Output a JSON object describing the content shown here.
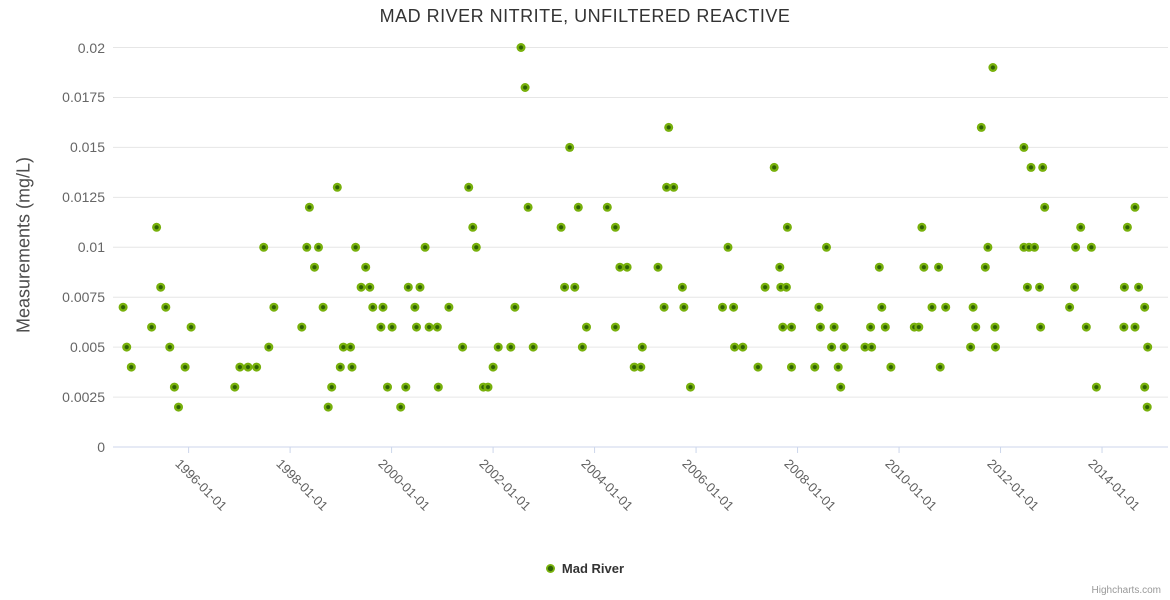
{
  "title": "MAD RIVER NITRITE, UNFILTERED REACTIVE",
  "legend": {
    "label": "Mad River"
  },
  "credit": "Highcharts.com",
  "colors": {
    "title": "#333333",
    "tick_label": "#666666",
    "grid": "#e6e6e6",
    "axis_line": "#ccd6eb",
    "marker_outer": "#7bb40e",
    "marker_inner": "#2f6105"
  },
  "chart_data": {
    "type": "scatter",
    "title": "MAD RIVER NITRITE, UNFILTERED REACTIVE",
    "xlabel": "",
    "ylabel": "Measurements (mg/L)",
    "grid": "horizontal",
    "legend_position": "bottom-center",
    "xlim_years": [
      1994.51,
      2015.3
    ],
    "ylim": [
      0,
      0.02
    ],
    "x_tick_years": [
      1996,
      1998,
      2000,
      2002,
      2004,
      2006,
      2008,
      2010,
      2012,
      2014
    ],
    "x_ticks": [
      "1996-01-01",
      "1998-01-01",
      "2000-01-01",
      "2002-01-01",
      "2004-01-01",
      "2006-01-01",
      "2008-01-01",
      "2010-01-01",
      "2012-01-01",
      "2014-01-01"
    ],
    "y_ticks": [
      0,
      0.0025,
      0.005,
      0.0075,
      0.01,
      0.0125,
      0.015,
      0.0175,
      0.02
    ],
    "y_tick_labels": [
      "0",
      "0.0025",
      "0.005",
      "0.0075",
      "0.01",
      "0.0125",
      "0.015",
      "0.0175",
      "0.02"
    ],
    "series": [
      {
        "name": "Mad River",
        "points": [
          [
            1994.71,
            0.007
          ],
          [
            1994.78,
            0.005
          ],
          [
            1994.87,
            0.004
          ],
          [
            1995.27,
            0.006
          ],
          [
            1995.37,
            0.011
          ],
          [
            1995.45,
            0.008
          ],
          [
            1995.55,
            0.007
          ],
          [
            1995.63,
            0.005
          ],
          [
            1995.72,
            0.003
          ],
          [
            1995.8,
            0.002
          ],
          [
            1995.93,
            0.004
          ],
          [
            1996.05,
            0.006
          ],
          [
            1996.91,
            0.003
          ],
          [
            1997.01,
            0.004
          ],
          [
            1997.17,
            0.004
          ],
          [
            1997.34,
            0.004
          ],
          [
            1997.48,
            0.01
          ],
          [
            1997.58,
            0.005
          ],
          [
            1997.68,
            0.007
          ],
          [
            1998.23,
            0.006
          ],
          [
            1998.33,
            0.01
          ],
          [
            1998.38,
            0.012
          ],
          [
            1998.48,
            0.009
          ],
          [
            1998.56,
            0.01
          ],
          [
            1998.65,
            0.007
          ],
          [
            1998.75,
            0.002
          ],
          [
            1998.82,
            0.003
          ],
          [
            1998.93,
            0.013
          ],
          [
            1998.99,
            0.004
          ],
          [
            1999.05,
            0.005
          ],
          [
            1999.19,
            0.005
          ],
          [
            1999.22,
            0.004
          ],
          [
            1999.29,
            0.01
          ],
          [
            1999.4,
            0.008
          ],
          [
            1999.49,
            0.009
          ],
          [
            1999.57,
            0.008
          ],
          [
            1999.63,
            0.007
          ],
          [
            1999.79,
            0.006
          ],
          [
            1999.83,
            0.007
          ],
          [
            1999.92,
            0.003
          ],
          [
            2000.01,
            0.006
          ],
          [
            2000.18,
            0.002
          ],
          [
            2000.28,
            0.003
          ],
          [
            2000.33,
            0.008
          ],
          [
            2000.46,
            0.007
          ],
          [
            2000.49,
            0.006
          ],
          [
            2000.56,
            0.008
          ],
          [
            2000.66,
            0.01
          ],
          [
            2000.74,
            0.006
          ],
          [
            2000.9,
            0.006
          ],
          [
            2000.92,
            0.003
          ],
          [
            2001.13,
            0.007
          ],
          [
            2001.4,
            0.005
          ],
          [
            2001.52,
            0.013
          ],
          [
            2001.6,
            0.011
          ],
          [
            2001.67,
            0.01
          ],
          [
            2001.81,
            0.003
          ],
          [
            2001.9,
            0.003
          ],
          [
            2002.0,
            0.004
          ],
          [
            2002.1,
            0.005
          ],
          [
            2002.35,
            0.005
          ],
          [
            2002.43,
            0.007
          ],
          [
            2002.55,
            0.02
          ],
          [
            2002.63,
            0.018
          ],
          [
            2002.69,
            0.012
          ],
          [
            2002.79,
            0.005
          ],
          [
            2003.34,
            0.011
          ],
          [
            2003.41,
            0.008
          ],
          [
            2003.51,
            0.015
          ],
          [
            2003.61,
            0.008
          ],
          [
            2003.68,
            0.012
          ],
          [
            2003.76,
            0.005
          ],
          [
            2003.84,
            0.006
          ],
          [
            2004.25,
            0.012
          ],
          [
            2004.41,
            0.011
          ],
          [
            2004.41,
            0.006
          ],
          [
            2004.5,
            0.009
          ],
          [
            2004.64,
            0.009
          ],
          [
            2004.78,
            0.004
          ],
          [
            2004.91,
            0.004
          ],
          [
            2004.94,
            0.005
          ],
          [
            2005.25,
            0.009
          ],
          [
            2005.37,
            0.007
          ],
          [
            2005.42,
            0.013
          ],
          [
            2005.46,
            0.016
          ],
          [
            2005.56,
            0.013
          ],
          [
            2005.73,
            0.008
          ],
          [
            2005.76,
            0.007
          ],
          [
            2005.89,
            0.003
          ],
          [
            2006.52,
            0.007
          ],
          [
            2006.63,
            0.01
          ],
          [
            2006.74,
            0.007
          ],
          [
            2006.76,
            0.005
          ],
          [
            2006.92,
            0.005
          ],
          [
            2007.22,
            0.004
          ],
          [
            2007.36,
            0.008
          ],
          [
            2007.54,
            0.014
          ],
          [
            2007.65,
            0.009
          ],
          [
            2007.67,
            0.008
          ],
          [
            2007.71,
            0.006
          ],
          [
            2007.78,
            0.008
          ],
          [
            2007.8,
            0.011
          ],
          [
            2007.88,
            0.006
          ],
          [
            2007.88,
            0.004
          ],
          [
            2008.34,
            0.004
          ],
          [
            2008.42,
            0.007
          ],
          [
            2008.45,
            0.006
          ],
          [
            2008.57,
            0.01
          ],
          [
            2008.67,
            0.005
          ],
          [
            2008.72,
            0.006
          ],
          [
            2008.8,
            0.004
          ],
          [
            2008.85,
            0.003
          ],
          [
            2008.92,
            0.005
          ],
          [
            2009.33,
            0.005
          ],
          [
            2009.44,
            0.006
          ],
          [
            2009.46,
            0.005
          ],
          [
            2009.61,
            0.009
          ],
          [
            2009.66,
            0.007
          ],
          [
            2009.73,
            0.006
          ],
          [
            2009.84,
            0.004
          ],
          [
            2010.3,
            0.006
          ],
          [
            2010.39,
            0.006
          ],
          [
            2010.45,
            0.011
          ],
          [
            2010.49,
            0.009
          ],
          [
            2010.65,
            0.007
          ],
          [
            2010.78,
            0.009
          ],
          [
            2010.81,
            0.004
          ],
          [
            2010.92,
            0.007
          ],
          [
            2011.41,
            0.005
          ],
          [
            2011.46,
            0.007
          ],
          [
            2011.51,
            0.006
          ],
          [
            2011.62,
            0.016
          ],
          [
            2011.7,
            0.009
          ],
          [
            2011.75,
            0.01
          ],
          [
            2011.85,
            0.019
          ],
          [
            2011.89,
            0.006
          ],
          [
            2011.9,
            0.005
          ],
          [
            2012.46,
            0.015
          ],
          [
            2012.46,
            0.01
          ],
          [
            2012.53,
            0.008
          ],
          [
            2012.56,
            0.01
          ],
          [
            2012.6,
            0.014
          ],
          [
            2012.67,
            0.01
          ],
          [
            2012.77,
            0.008
          ],
          [
            2012.79,
            0.006
          ],
          [
            2012.83,
            0.014
          ],
          [
            2012.87,
            0.012
          ],
          [
            2013.36,
            0.007
          ],
          [
            2013.46,
            0.008
          ],
          [
            2013.48,
            0.01
          ],
          [
            2013.58,
            0.011
          ],
          [
            2013.69,
            0.006
          ],
          [
            2013.79,
            0.01
          ],
          [
            2013.89,
            0.003
          ],
          [
            2014.43,
            0.006
          ],
          [
            2014.44,
            0.008
          ],
          [
            2014.5,
            0.011
          ],
          [
            2014.65,
            0.012
          ],
          [
            2014.65,
            0.006
          ],
          [
            2014.72,
            0.008
          ],
          [
            2014.84,
            0.007
          ],
          [
            2014.84,
            0.003
          ],
          [
            2014.89,
            0.002
          ],
          [
            2014.9,
            0.005
          ]
        ]
      }
    ]
  }
}
